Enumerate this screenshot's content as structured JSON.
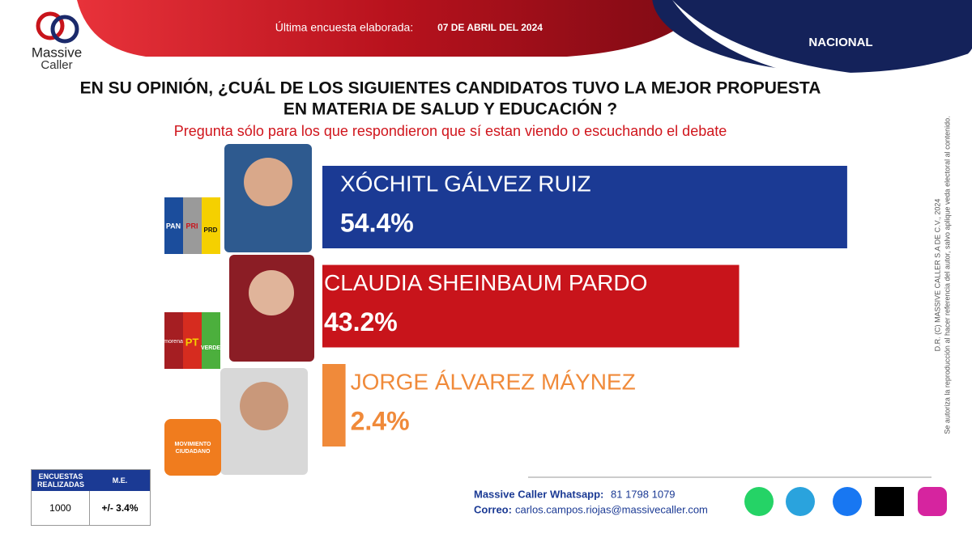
{
  "header": {
    "label": "Última encuesta elaborada:",
    "date": "07 DE ABRIL DEL 2024",
    "region": "NACIONAL"
  },
  "logo": {
    "line1": "Massive",
    "line2": "Caller"
  },
  "chart_data": {
    "type": "bar",
    "title": [
      "EN SU OPINIÓN, ¿CUÁL DE LOS SIGUIENTES CANDIDATOS TUVO LA MEJOR PROPUESTA",
      "EN MATERIA DE SALUD Y EDUCACIÓN ?"
    ],
    "subtitle": "Pregunta sólo para los que respondieron que sí estan viendo o escuchando el debate",
    "categories": [
      "XÓCHITL GÁLVEZ RUIZ",
      "CLAUDIA SHEINBAUM PARDO",
      "JORGE ÁLVAREZ MÁYNEZ"
    ],
    "values": [
      54.4,
      43.2,
      2.4
    ],
    "value_labels": [
      "54.4%",
      "43.2%",
      "2.4%"
    ],
    "colors": [
      "#1b3a94",
      "#c8141b",
      "#f08a3a"
    ]
  },
  "parties": [
    [
      "PAN",
      "PRI",
      "PRD"
    ],
    [
      "morena",
      "PT",
      "VERDE"
    ],
    [
      "MOVIMIENTO CIUDADANO"
    ]
  ],
  "sample_table": {
    "headers": [
      "ENCUESTAS REALIZADAS",
      "M.E."
    ],
    "row": [
      "1000",
      "+/- 3.4%"
    ]
  },
  "contact": {
    "whatsapp_label": "Massive Caller Whatsapp:",
    "whatsapp": "81 1798 1079",
    "email_label": "Correo:",
    "email": "carlos.campos.riojas@massivecaller.com"
  },
  "copyright": [
    "D.R. (C) MASSIVE CALLER S.A DE C.V., 2024",
    "Se autoriza la reproducción al hacer referencia del autor, salvo aplique veda electoral al contenido."
  ]
}
